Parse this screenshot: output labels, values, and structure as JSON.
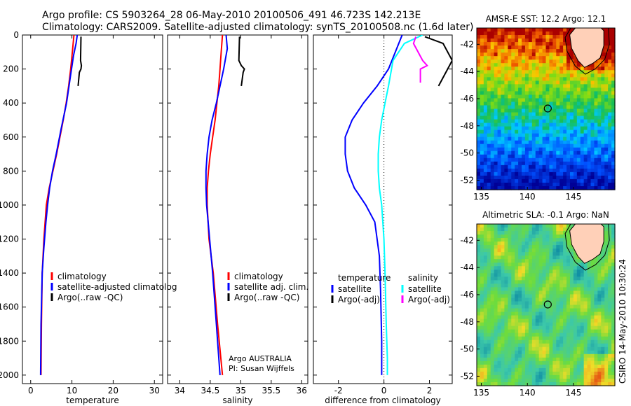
{
  "header": {
    "line1": "Argo profile: CS 5903264_28 06-May-2010 20100506_491 46.723S 142.213E",
    "line2": "Climatology: CARS2009. Satellite-adjusted climatology: synTS_20100508.nc (1.6d later)"
  },
  "side_label": "CSIRO 14-May-2010 10:30:24",
  "chart_data": [
    {
      "type": "line",
      "xlabel": "temperature",
      "ylabel": "",
      "xlim": [
        -2,
        32
      ],
      "ylim": [
        2050,
        0
      ],
      "xticks": [
        0,
        10,
        20,
        30
      ],
      "yticks": [
        0,
        200,
        400,
        600,
        800,
        1000,
        1200,
        1400,
        1600,
        1800,
        2000
      ],
      "legend": [
        "climatology",
        "satellite-adjusted climatolog",
        "Argo(..raw -QC)"
      ],
      "legend_placement": "lower-right",
      "series": [
        {
          "name": "climatology",
          "color": "#ff0000",
          "x": [
            10.5,
            10.1,
            9.7,
            9.2,
            8.6,
            7.9,
            7.1,
            6.3,
            5.4,
            4.5,
            3.8,
            3.2,
            2.8,
            2.6,
            2.5
          ],
          "y": [
            0,
            100,
            200,
            300,
            400,
            500,
            600,
            700,
            800,
            900,
            1000,
            1200,
            1400,
            1700,
            2000
          ]
        },
        {
          "name": "satellite-adjusted climatolog",
          "color": "#0000ff",
          "x": [
            11.3,
            11.0,
            10.4,
            9.6,
            8.7,
            7.4,
            6.2,
            5.3,
            4.6,
            4.1,
            3.7,
            3.2,
            2.8,
            2.5,
            2.4
          ],
          "y": [
            0,
            50,
            120,
            250,
            400,
            550,
            700,
            800,
            900,
            1000,
            1100,
            1250,
            1400,
            1700,
            2000
          ]
        },
        {
          "name": "Argo(..raw -QC)",
          "color": "#000000",
          "x": [
            12.2,
            12.1,
            12.3,
            12.2,
            11.8,
            11.5
          ],
          "y": [
            10,
            150,
            180,
            200,
            220,
            300
          ]
        }
      ]
    },
    {
      "type": "line",
      "xlabel": "salinity",
      "xlim": [
        33.8,
        36.1
      ],
      "ylim": [
        2050,
        0
      ],
      "xticks": [
        34,
        34.5,
        35,
        35.5,
        36
      ],
      "legend": [
        "climatology",
        "satellite adj. clim.",
        "Argo(..raw -QC)"
      ],
      "legend_placement": "lower-right",
      "annotation": [
        "Argo AUSTRALIA",
        "PI: Susan Wijffels"
      ],
      "series": [
        {
          "name": "climatology",
          "color": "#ff0000",
          "x": [
            34.7,
            34.68,
            34.66,
            34.64,
            34.61,
            34.58,
            34.54,
            34.5,
            34.47,
            34.45,
            34.45,
            34.48,
            34.55,
            34.62,
            34.7
          ],
          "y": [
            0,
            100,
            200,
            300,
            400,
            500,
            600,
            700,
            800,
            900,
            1000,
            1200,
            1400,
            1700,
            2000
          ]
        },
        {
          "name": "satellite adj. clim.",
          "color": "#0000ff",
          "x": [
            34.76,
            34.78,
            34.72,
            34.66,
            34.6,
            34.53,
            34.48,
            34.45,
            34.43,
            34.43,
            34.44,
            34.49,
            34.54,
            34.6,
            34.66
          ],
          "y": [
            0,
            80,
            200,
            300,
            400,
            500,
            600,
            700,
            800,
            900,
            1000,
            1200,
            1400,
            1700,
            2000
          ]
        },
        {
          "name": "Argo(..raw -QC)",
          "color": "#000000",
          "x": [
            34.98,
            34.97,
            35.01,
            35.06,
            35.04,
            35.01
          ],
          "y": [
            10,
            150,
            180,
            200,
            220,
            300
          ]
        }
      ]
    },
    {
      "type": "line",
      "xlabel": "difference from climatology",
      "xlim": [
        -3.1,
        3.0
      ],
      "ylim": [
        2050,
        0
      ],
      "xticks": [
        -2,
        0,
        2
      ],
      "legend": [
        "temperature",
        "satellite",
        "Argo(-adj)",
        "salinity",
        "satellite",
        "Argo(-adj)"
      ],
      "legend_placement": "lower-center",
      "series": [
        {
          "name": "temperature satellite",
          "color": "#0000ff",
          "x": [
            0.8,
            0.5,
            0.2,
            -0.3,
            -0.9,
            -1.4,
            -1.7,
            -1.7,
            -1.6,
            -1.3,
            -0.8,
            -0.4,
            -0.2,
            -0.15,
            -0.1,
            -0.1
          ],
          "y": [
            0,
            100,
            200,
            300,
            400,
            500,
            600,
            700,
            800,
            900,
            1000,
            1100,
            1300,
            1500,
            1800,
            2000
          ]
        },
        {
          "name": "salinity satellite",
          "color": "#00ffff",
          "x": [
            1.7,
            0.9,
            0.4,
            0.2,
            0.05,
            -0.1,
            -0.2,
            -0.25,
            -0.25,
            -0.2,
            -0.1,
            0.0,
            0.05,
            0.1,
            0.15,
            0.15
          ],
          "y": [
            0,
            50,
            150,
            300,
            400,
            500,
            600,
            700,
            800,
            900,
            1000,
            1200,
            1400,
            1700,
            1900,
            2000
          ]
        },
        {
          "name": "temperature Argo(-adj)",
          "color": "#000000",
          "x": [
            1.8,
            2.6,
            3.0,
            2.8,
            2.4
          ],
          "y": [
            10,
            50,
            150,
            200,
            300
          ]
        },
        {
          "name": "salinity Argo(-adj)",
          "color": "#ff00ff",
          "x": [
            1.4,
            1.3,
            1.7,
            1.9,
            1.6,
            1.6
          ],
          "y": [
            10,
            50,
            150,
            180,
            200,
            280
          ]
        }
      ]
    },
    {
      "type": "heatmap",
      "title": "AMSR-E SST: 12.2 Argo: 12.1",
      "xlim": [
        134.5,
        149.5
      ],
      "ylim": [
        -52.7,
        -40.8
      ],
      "xticks": [
        135,
        140,
        145
      ],
      "yticks": [
        -42,
        -44,
        -46,
        -48,
        -50,
        -52
      ],
      "marker": {
        "lon": 142.213,
        "lat": -46.723
      }
    },
    {
      "type": "heatmap",
      "title": "Altimetric SLA: -0.1 Argo: NaN",
      "xlim": [
        134.5,
        149.5
      ],
      "ylim": [
        -52.7,
        -40.8
      ],
      "xticks": [
        135,
        140,
        145
      ],
      "yticks": [
        -42,
        -44,
        -46,
        -48,
        -50,
        -52
      ],
      "marker": {
        "lon": 142.213,
        "lat": -46.723
      }
    }
  ]
}
